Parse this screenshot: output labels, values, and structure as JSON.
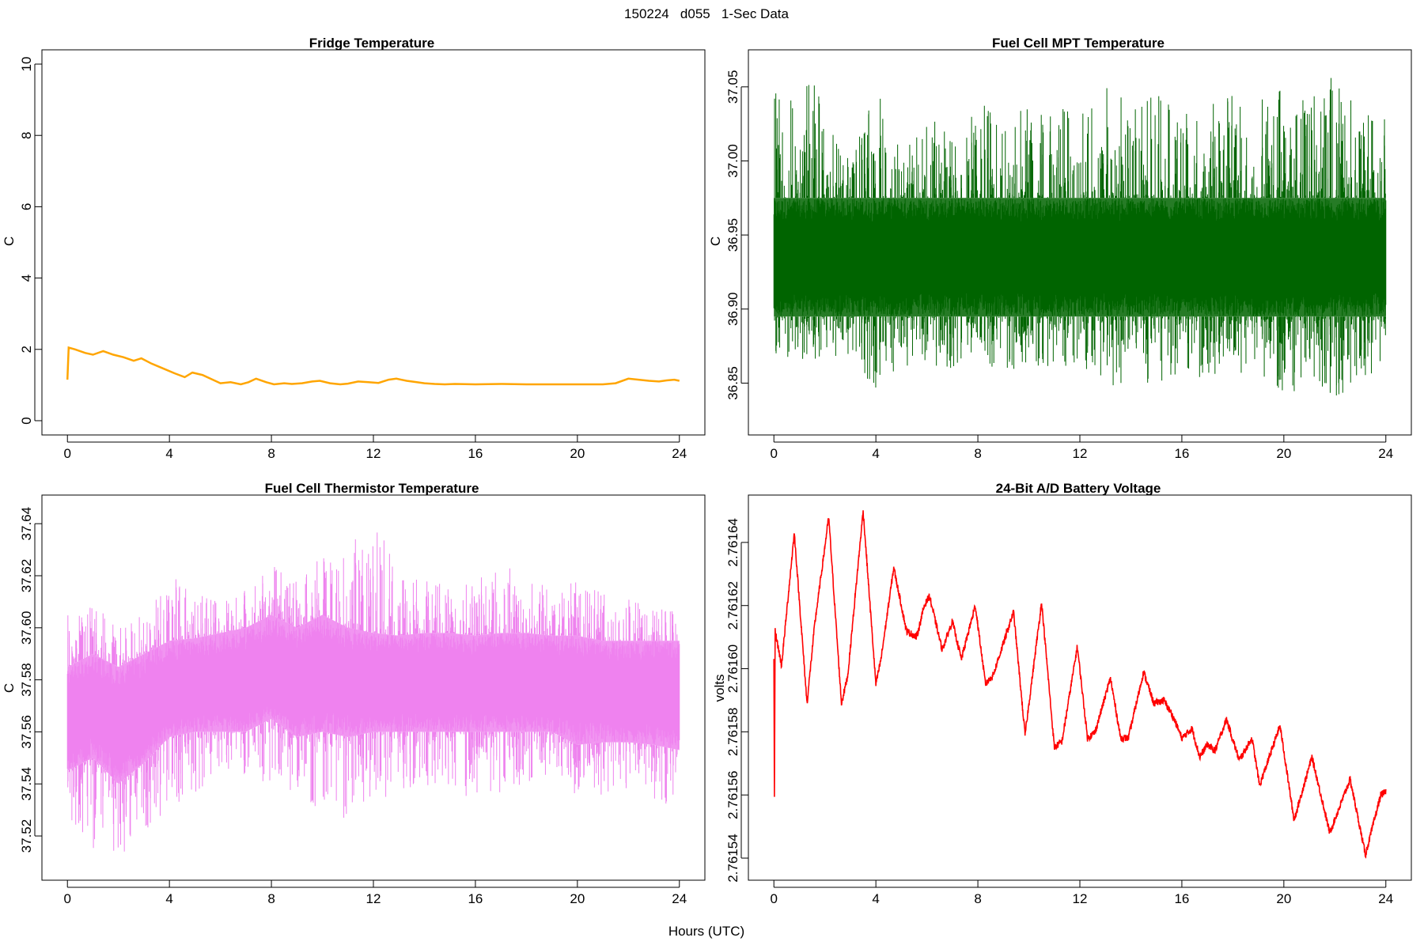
{
  "figure": {
    "suptitle": "150224   d055   1-Sec Data",
    "xlabel": "Hours (UTC)"
  },
  "chart_data": [
    {
      "type": "line",
      "title": "Fridge Temperature",
      "xlabel": "",
      "ylabel": "C",
      "color": "#FFA500",
      "style": "smooth",
      "grid": false,
      "xlim": [
        -1,
        25
      ],
      "ylim": [
        -0.4,
        10.4
      ],
      "xticks": [
        "0",
        "4",
        "8",
        "12",
        "16",
        "20",
        "24"
      ],
      "yticks": [
        "0",
        "2",
        "4",
        "6",
        "8",
        "10"
      ],
      "series": [
        {
          "x": [
            0,
            0.05,
            0.3,
            0.7,
            1.0,
            1.4,
            1.8,
            2.2,
            2.6,
            2.9,
            3.3,
            3.7,
            4.2,
            4.6,
            4.9,
            5.3,
            5.7,
            6.0,
            6.4,
            6.8,
            7.1,
            7.4,
            7.8,
            8.1,
            8.5,
            8.8,
            9.2,
            9.6,
            9.9,
            10.3,
            10.7,
            11.0,
            11.4,
            11.8,
            12.2,
            12.6,
            12.9,
            13.3,
            13.7,
            14.0,
            14.4,
            14.8,
            15.2,
            16.0,
            17.0,
            18.0,
            19.0,
            20.0,
            21.0,
            21.5,
            22.0,
            22.4,
            22.8,
            23.2,
            23.5,
            23.8,
            24.0
          ],
          "y": [
            1.15,
            2.05,
            2.0,
            1.9,
            1.85,
            1.95,
            1.85,
            1.78,
            1.68,
            1.75,
            1.6,
            1.48,
            1.33,
            1.22,
            1.35,
            1.28,
            1.15,
            1.05,
            1.08,
            1.02,
            1.08,
            1.18,
            1.08,
            1.02,
            1.05,
            1.03,
            1.05,
            1.1,
            1.12,
            1.05,
            1.02,
            1.04,
            1.1,
            1.08,
            1.06,
            1.15,
            1.18,
            1.12,
            1.08,
            1.05,
            1.03,
            1.02,
            1.03,
            1.02,
            1.03,
            1.02,
            1.02,
            1.02,
            1.02,
            1.05,
            1.18,
            1.15,
            1.12,
            1.1,
            1.13,
            1.15,
            1.12
          ]
        }
      ]
    },
    {
      "type": "line",
      "title": "Fuel Cell MPT Temperature",
      "xlabel": "",
      "ylabel": "C",
      "color": "#006400",
      "style": "noisy",
      "grid": false,
      "xlim": [
        -1,
        25
      ],
      "ylim": [
        36.815,
        37.075
      ],
      "xticks": [
        "0",
        "4",
        "8",
        "12",
        "16",
        "20",
        "24"
      ],
      "yticks": [
        "36.85",
        "36.90",
        "36.95",
        "37.00",
        "37.05"
      ],
      "series": [
        {
          "x": [
            0,
            1,
            2,
            3,
            4,
            5,
            6,
            7,
            8,
            9,
            10,
            11,
            12,
            13,
            14,
            15,
            16,
            17,
            18,
            19,
            20,
            21,
            22,
            23,
            24
          ],
          "y": [
            36.935,
            36.935,
            36.935,
            36.935,
            36.935,
            36.935,
            36.935,
            36.935,
            36.935,
            36.935,
            36.935,
            36.935,
            36.935,
            36.935,
            36.935,
            36.935,
            36.935,
            36.935,
            36.935,
            36.935,
            36.935,
            36.935,
            36.935,
            36.935,
            36.935
          ],
          "band_low": [
            36.895,
            36.895,
            36.895,
            36.895,
            36.895,
            36.895,
            36.895,
            36.895,
            36.895,
            36.895,
            36.895,
            36.895,
            36.895,
            36.895,
            36.895,
            36.895,
            36.895,
            36.895,
            36.895,
            36.895,
            36.895,
            36.895,
            36.895,
            36.895,
            36.895
          ],
          "band_high": [
            36.975,
            36.975,
            36.975,
            36.975,
            36.975,
            36.975,
            36.975,
            36.975,
            36.975,
            36.975,
            36.975,
            36.975,
            36.975,
            36.975,
            36.975,
            36.975,
            36.975,
            36.975,
            36.975,
            36.975,
            36.975,
            36.975,
            36.975,
            36.975,
            36.975
          ],
          "spike_max": [
            37.05,
            37.05,
            37.06,
            37.0,
            37.05,
            37.01,
            37.03,
            37.02,
            37.04,
            37.03,
            37.04,
            37.04,
            37.03,
            37.05,
            37.04,
            37.05,
            37.04,
            37.04,
            37.05,
            37.05,
            37.05,
            37.04,
            37.06,
            37.04,
            37.03
          ],
          "spike_min": [
            36.87,
            36.86,
            36.87,
            36.86,
            36.84,
            36.86,
            36.86,
            36.86,
            36.87,
            36.85,
            36.86,
            36.86,
            36.86,
            36.85,
            36.84,
            36.85,
            36.85,
            36.85,
            36.86,
            36.85,
            36.84,
            36.85,
            36.84,
            36.85,
            36.86
          ]
        }
      ]
    },
    {
      "type": "line",
      "title": "Fuel Cell Thermistor Temperature",
      "xlabel": "",
      "ylabel": "C",
      "color": "#EE82EE",
      "style": "noisy",
      "grid": false,
      "xlim": [
        -1,
        25
      ],
      "ylim": [
        37.503,
        37.651
      ],
      "xticks": [
        "0",
        "4",
        "8",
        "12",
        "16",
        "20",
        "24"
      ],
      "yticks": [
        "37.52",
        "37.54",
        "37.56",
        "37.58",
        "37.60",
        "37.62",
        "37.64"
      ],
      "series": [
        {
          "x": [
            0,
            1,
            2,
            3,
            4,
            5,
            6,
            7,
            8,
            9,
            10,
            11,
            12,
            13,
            14,
            15,
            16,
            17,
            18,
            19,
            20,
            21,
            22,
            23,
            24
          ],
          "y": [
            37.565,
            37.57,
            37.562,
            37.568,
            37.575,
            37.576,
            37.577,
            37.578,
            37.58,
            37.578,
            37.58,
            37.579,
            37.578,
            37.578,
            37.578,
            37.578,
            37.578,
            37.578,
            37.578,
            37.578,
            37.578,
            37.575,
            37.575,
            37.575,
            37.575
          ],
          "band_low": [
            37.545,
            37.55,
            37.54,
            37.548,
            37.558,
            37.56,
            37.56,
            37.56,
            37.565,
            37.558,
            37.56,
            37.558,
            37.56,
            37.56,
            37.56,
            37.56,
            37.56,
            37.56,
            37.56,
            37.56,
            37.555,
            37.556,
            37.556,
            37.555,
            37.553
          ],
          "band_high": [
            37.585,
            37.59,
            37.585,
            37.59,
            37.595,
            37.596,
            37.598,
            37.6,
            37.605,
            37.6,
            37.605,
            37.6,
            37.598,
            37.597,
            37.598,
            37.598,
            37.597,
            37.598,
            37.598,
            37.597,
            37.597,
            37.595,
            37.595,
            37.595,
            37.595
          ],
          "spike_max": [
            37.605,
            37.61,
            37.6,
            37.605,
            37.62,
            37.615,
            37.61,
            37.615,
            37.625,
            37.62,
            37.628,
            37.63,
            37.647,
            37.62,
            37.618,
            37.62,
            37.62,
            37.622,
            37.625,
            37.615,
            37.618,
            37.615,
            37.612,
            37.612,
            37.61
          ],
          "spike_min": [
            37.525,
            37.515,
            37.51,
            37.52,
            37.53,
            37.535,
            37.545,
            37.54,
            37.54,
            37.535,
            37.53,
            37.525,
            37.535,
            37.535,
            37.54,
            37.535,
            37.535,
            37.535,
            37.54,
            37.535,
            37.535,
            37.535,
            37.535,
            37.53,
            37.525
          ]
        }
      ]
    },
    {
      "type": "line",
      "title": "24-Bit A/D Battery Voltage",
      "xlabel": "",
      "ylabel": "volts",
      "color": "#FF0000",
      "style": "jitter",
      "grid": false,
      "xlim": [
        -1,
        25
      ],
      "ylim": [
        2.761533,
        2.761655
      ],
      "xticks": [
        "0",
        "4",
        "8",
        "12",
        "16",
        "20",
        "24"
      ],
      "yticks": [
        "2.76154",
        "2.76156",
        "2.76158",
        "2.76160",
        "2.76162",
        "2.76164"
      ],
      "series": [
        {
          "x": [
            0,
            0.02,
            0.05,
            0.3,
            0.8,
            1.3,
            1.6,
            2.15,
            2.65,
            2.9,
            3.5,
            4.0,
            4.2,
            4.7,
            5.2,
            5.6,
            5.9,
            6.1,
            6.6,
            7.0,
            7.35,
            7.9,
            8.3,
            8.6,
            9.4,
            9.85,
            10.5,
            11.0,
            11.3,
            11.9,
            12.3,
            12.6,
            13.2,
            13.6,
            13.9,
            14.5,
            14.9,
            15.3,
            15.7,
            16.0,
            16.4,
            16.7,
            17.0,
            17.3,
            17.75,
            18.25,
            18.75,
            19.05,
            19.85,
            20.4,
            21.1,
            21.8,
            22.6,
            23.2,
            23.8,
            24.0
          ],
          "y": [
            2.761603,
            2.761559,
            2.761612,
            2.761601,
            2.761643,
            2.761589,
            2.761614,
            2.761648,
            2.761589,
            2.761598,
            2.76165,
            2.761595,
            2.761603,
            2.761632,
            2.761612,
            2.76161,
            2.76162,
            2.761623,
            2.761606,
            2.761615,
            2.761603,
            2.76162,
            2.761595,
            2.761598,
            2.761618,
            2.761579,
            2.761621,
            2.761575,
            2.761577,
            2.761607,
            2.761578,
            2.76158,
            2.761597,
            2.761578,
            2.761578,
            2.761599,
            2.761589,
            2.76159,
            2.761584,
            2.761578,
            2.761581,
            2.761572,
            2.761576,
            2.761574,
            2.761584,
            2.761571,
            2.761578,
            2.761563,
            2.761582,
            2.761552,
            2.761572,
            2.761548,
            2.761565,
            2.761541,
            2.76156,
            2.761561
          ]
        }
      ]
    }
  ]
}
